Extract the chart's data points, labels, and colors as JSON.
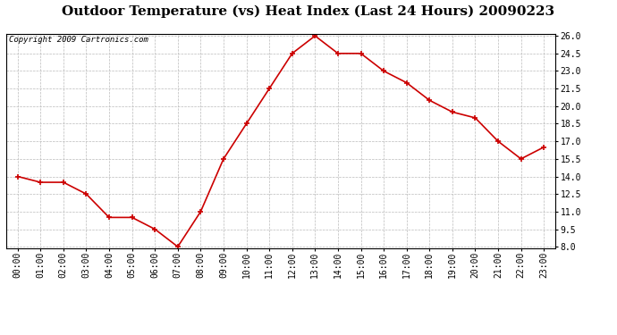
{
  "title": "Outdoor Temperature (vs) Heat Index (Last 24 Hours) 20090223",
  "copyright_text": "Copyright 2009 Cartronics.com",
  "x_labels": [
    "00:00",
    "01:00",
    "02:00",
    "03:00",
    "04:00",
    "05:00",
    "06:00",
    "07:00",
    "08:00",
    "09:00",
    "10:00",
    "11:00",
    "12:00",
    "13:00",
    "14:00",
    "15:00",
    "16:00",
    "17:00",
    "18:00",
    "19:00",
    "20:00",
    "21:00",
    "22:00",
    "23:00"
  ],
  "y_values": [
    14.0,
    13.5,
    13.5,
    12.5,
    10.5,
    10.5,
    9.5,
    8.0,
    11.0,
    15.5,
    18.5,
    21.5,
    24.5,
    26.0,
    24.5,
    24.5,
    23.0,
    22.0,
    20.5,
    19.5,
    19.0,
    17.0,
    15.5,
    16.5
  ],
  "line_color": "#cc0000",
  "marker": "+",
  "marker_size": 5,
  "marker_color": "#cc0000",
  "line_width": 1.2,
  "ylim_min": 8.0,
  "ylim_max": 26.0,
  "ytick_values": [
    8.0,
    9.5,
    11.0,
    12.5,
    14.0,
    15.5,
    17.0,
    18.5,
    20.0,
    21.5,
    23.0,
    24.5,
    26.0
  ],
  "ytick_labels": [
    "8.0",
    "9.5",
    "11.0",
    "12.5",
    "14.0",
    "15.5",
    "17.0",
    "18.5",
    "20.0",
    "21.5",
    "23.0",
    "24.5",
    "26.0"
  ],
  "background_color": "#ffffff",
  "plot_bg_color": "#ffffff",
  "grid_color": "#bbbbbb",
  "grid_style": "--",
  "title_fontsize": 11,
  "copyright_fontsize": 6.5,
  "tick_fontsize": 7,
  "ytick_fontsize": 7
}
